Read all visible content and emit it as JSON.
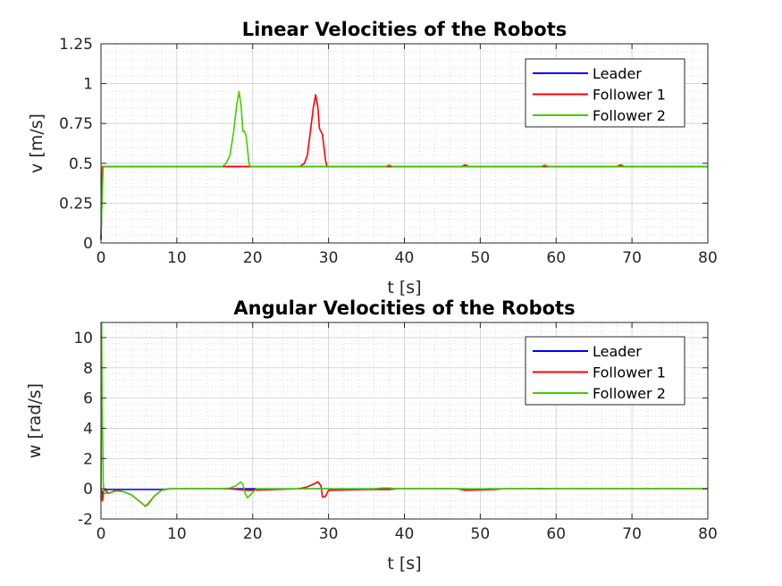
{
  "chart_data": [
    {
      "type": "line",
      "title": "Linear Velocities of the Robots",
      "xlabel": "t [s]",
      "ylabel": "v [m/s]",
      "xlim": [
        0,
        80
      ],
      "ylim": [
        0,
        1.25
      ],
      "xticks": [
        0,
        10,
        20,
        30,
        40,
        50,
        60,
        70,
        80
      ],
      "xtick_labels": [
        "0",
        "10",
        "20",
        "30",
        "40",
        "50",
        "60",
        "70",
        "80"
      ],
      "yticks": [
        0,
        0.25,
        0.5,
        0.75,
        1,
        1.25
      ],
      "ytick_labels": [
        "0",
        "0.25",
        "0.5",
        "0.75",
        "1",
        "1.25"
      ],
      "grid": "on (major and minor)",
      "legend_position": "top-right",
      "series": [
        {
          "name": "Leader",
          "color": "#0000ff",
          "x": [
            0,
            0.2,
            0.3,
            80
          ],
          "y": [
            0.02,
            0.48,
            0.48,
            0.48
          ]
        },
        {
          "name": "Follower 1",
          "color": "#ff0000",
          "x": [
            0,
            0.2,
            0.3,
            26.2,
            26.8,
            27.2,
            27.6,
            28.0,
            28.3,
            28.6,
            28.8,
            29.0,
            29.2,
            29.4,
            29.6,
            29.8,
            30.0,
            47.5,
            48.0,
            48.5,
            68.0,
            68.5,
            69.0,
            80
          ],
          "y": [
            0.02,
            0.48,
            0.48,
            0.48,
            0.5,
            0.55,
            0.7,
            0.85,
            0.93,
            0.85,
            0.72,
            0.7,
            0.68,
            0.6,
            0.52,
            0.48,
            0.48,
            0.48,
            0.49,
            0.48,
            0.48,
            0.49,
            0.48,
            0.48
          ]
        },
        {
          "name": "Follower 2",
          "color": "#44cc00",
          "x": [
            0,
            0.1,
            0.3,
            16.0,
            16.5,
            17.0,
            17.5,
            17.9,
            18.2,
            18.5,
            18.7,
            18.9,
            19.1,
            19.3,
            19.5,
            19.7,
            37.5,
            38.0,
            38.5,
            58.0,
            58.5,
            59.0,
            80
          ],
          "y": [
            0.05,
            0.2,
            0.48,
            0.48,
            0.5,
            0.55,
            0.7,
            0.87,
            0.95,
            0.85,
            0.7,
            0.7,
            0.68,
            0.6,
            0.5,
            0.48,
            0.48,
            0.49,
            0.48,
            0.48,
            0.49,
            0.48,
            0.48
          ]
        }
      ]
    },
    {
      "type": "line",
      "title": "Angular Velocities of the Robots",
      "xlabel": "t [s]",
      "ylabel": "w [rad/s]",
      "xlim": [
        0,
        80
      ],
      "ylim": [
        -2,
        11
      ],
      "xticks": [
        0,
        10,
        20,
        30,
        40,
        50,
        60,
        70,
        80
      ],
      "xtick_labels": [
        "0",
        "10",
        "20",
        "30",
        "40",
        "50",
        "60",
        "70",
        "80"
      ],
      "yticks": [
        -2,
        0,
        2,
        4,
        6,
        8,
        10
      ],
      "ytick_labels": [
        "-2",
        "0",
        "2",
        "4",
        "6",
        "8",
        "10"
      ],
      "grid": "on (major and minor)",
      "legend_position": "top-right",
      "series": [
        {
          "name": "Leader",
          "color": "#0000ff",
          "x": [
            0,
            0.2,
            0.5,
            1.0,
            8.0,
            8.5,
            9.0,
            10.0,
            48.0,
            49.0,
            50.0,
            51.0,
            80
          ],
          "y": [
            0,
            -0.3,
            -0.05,
            -0.05,
            -0.05,
            -0.03,
            0,
            0,
            0,
            -0.05,
            -0.05,
            0,
            0
          ]
        },
        {
          "name": "Follower 1",
          "color": "#ff0000",
          "x": [
            0,
            0.2,
            0.4,
            1.0,
            2.0,
            3.0,
            4.0,
            4.5,
            5.0,
            5.5,
            5.8,
            6.2,
            7.0,
            8.0,
            9.0,
            10.0,
            16.0,
            17.0,
            18.0,
            19.0,
            20.0,
            23.0,
            26.0,
            27.0,
            28.0,
            28.6,
            29.0,
            29.2,
            29.6,
            30.0,
            35.0,
            38.0,
            39.0,
            47.0,
            48.0,
            52.0,
            53.0,
            80
          ],
          "y": [
            0,
            -0.8,
            0,
            -0.3,
            -0.1,
            -0.2,
            -0.4,
            -0.6,
            -0.8,
            -1.0,
            -1.15,
            -1.0,
            -0.5,
            -0.1,
            0,
            0,
            0,
            0,
            -0.05,
            -0.1,
            -0.1,
            -0.05,
            0,
            0.1,
            0.3,
            0.45,
            0.2,
            -0.55,
            -0.5,
            -0.1,
            -0.05,
            -0.05,
            0,
            0,
            -0.1,
            -0.05,
            0,
            0
          ]
        },
        {
          "name": "Follower 2",
          "color": "#44cc00",
          "x": [
            0,
            0.08,
            0.15,
            0.22,
            0.3,
            0.4,
            1.0,
            2.0,
            3.0,
            4.0,
            4.5,
            5.0,
            5.5,
            5.9,
            6.3,
            7.0,
            8.0,
            9.0,
            10.0,
            16.0,
            17.0,
            17.8,
            18.4,
            18.7,
            19.0,
            19.3,
            19.7,
            20.5,
            27.0,
            28.0,
            29.0,
            36.0,
            37.0,
            38.0,
            39.0,
            57.0,
            58.0,
            59.0,
            80
          ],
          "y": [
            -0.8,
            11.0,
            5.3,
            3.5,
            0.4,
            -0.3,
            -0.3,
            -0.15,
            -0.2,
            -0.4,
            -0.6,
            -0.8,
            -1.0,
            -1.15,
            -1.0,
            -0.5,
            -0.1,
            0,
            0,
            0,
            0.05,
            0.2,
            0.45,
            0.3,
            -0.3,
            -0.6,
            -0.4,
            0,
            0,
            0,
            0,
            0,
            0.05,
            0.05,
            0,
            0,
            0.02,
            0,
            0
          ]
        }
      ]
    }
  ]
}
